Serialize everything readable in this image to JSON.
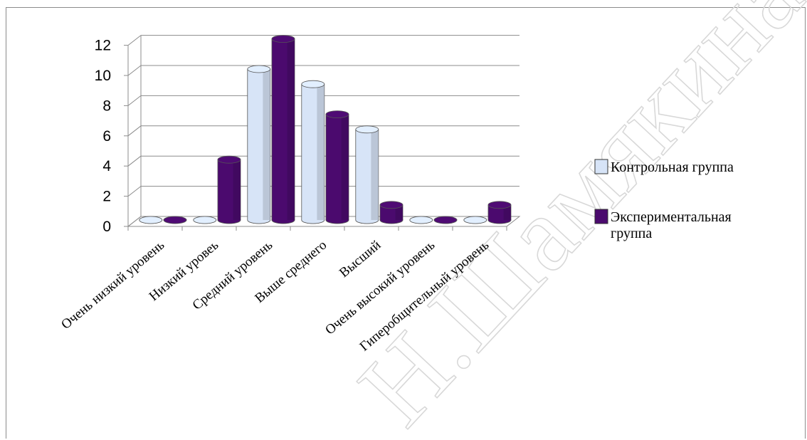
{
  "chart_data": {
    "type": "bar",
    "categories": [
      "Очень низкий уровень",
      "Низкий уровеь",
      "Средний уровень",
      "Выше среднего",
      "Высший",
      "Очень высокий уровень",
      "Гиперобщительный уровень"
    ],
    "series": [
      {
        "name": "Контрольная группа",
        "values": [
          0,
          0,
          10,
          9,
          6,
          0,
          0
        ],
        "color": "#d7e4f7"
      },
      {
        "name": "Экспериментальная группа",
        "values": [
          0,
          4,
          12,
          7,
          1,
          0,
          1
        ],
        "color": "#4b0a6e"
      }
    ],
    "yticks": [
      0,
      2,
      4,
      6,
      8,
      10,
      12
    ],
    "ylim": [
      0,
      12
    ],
    "grid": true,
    "legend_position": "right"
  },
  "legend": {
    "items": [
      {
        "label_lines": [
          "Контрольная группа"
        ]
      },
      {
        "label_lines": [
          "Экспериментальная",
          "группа"
        ]
      }
    ]
  },
  "watermark_text": "Н.Шамякина"
}
